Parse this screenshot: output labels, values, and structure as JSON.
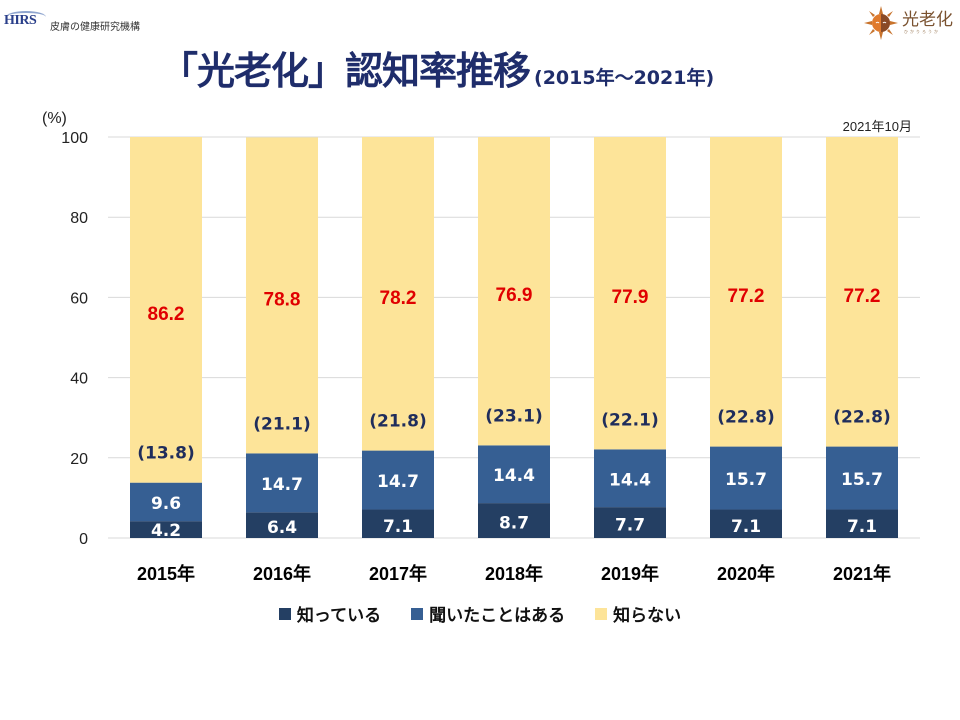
{
  "header": {
    "left_logo": {
      "abbr": "HIRS",
      "org_name": "皮膚の健康研究機構"
    },
    "right_logo": {
      "name": "光老化",
      "sub": "ひかりろうか"
    },
    "title_main": "「光老化」認知率推移",
    "title_sub": "(2015年～2021年)"
  },
  "date_note": "2021年10月",
  "colors": {
    "know": "#243f63",
    "heard": "#365f93",
    "unknown": "#fde499",
    "unknown_label": "#e00000",
    "paren_label": "#1f2d5c",
    "grid": "#d9d9d9"
  },
  "chart_data": {
    "type": "bar",
    "stacked": true,
    "title": "「光老化」認知率推移 (2015年～2021年)",
    "xlabel": "",
    "ylabel": "(%)",
    "ylim": [
      0,
      100
    ],
    "yticks": [
      0,
      20,
      40,
      60,
      80,
      100
    ],
    "grid": true,
    "legend_position": "bottom",
    "categories": [
      "2015年",
      "2016年",
      "2017年",
      "2018年",
      "2019年",
      "2020年",
      "2021年"
    ],
    "series": [
      {
        "name": "知っている",
        "values": [
          4.2,
          6.4,
          7.1,
          8.7,
          7.7,
          7.1,
          7.1
        ]
      },
      {
        "name": "聞いたことはある",
        "values": [
          9.6,
          14.7,
          14.7,
          14.4,
          14.4,
          15.7,
          15.7
        ]
      },
      {
        "name": "知らない",
        "values": [
          86.2,
          78.8,
          78.2,
          76.9,
          77.9,
          77.2,
          77.2
        ]
      }
    ],
    "awareness_totals": [
      "(13.8)",
      "(21.1)",
      "(21.8)",
      "(23.1)",
      "(22.1)",
      "(22.8)",
      "(22.8)"
    ],
    "annotation": "2021年10月"
  }
}
